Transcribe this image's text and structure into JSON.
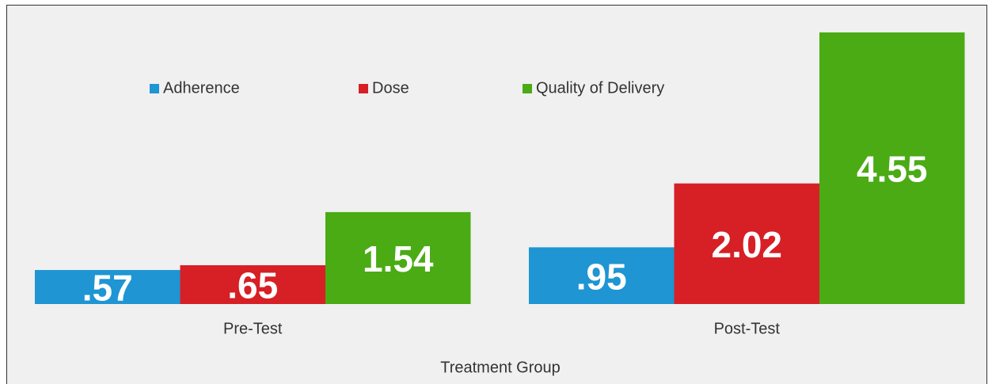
{
  "chart_data": {
    "type": "bar",
    "x_label": "Treatment Group",
    "categories": [
      "Pre-Test",
      "Post-Test"
    ],
    "series": [
      {
        "name": "Adherence",
        "color": "#1f95d3",
        "values": [
          0.57,
          0.95
        ],
        "value_labels": [
          ".57",
          ".95"
        ]
      },
      {
        "name": "Dose",
        "color": "#d71f26",
        "values": [
          0.65,
          2.02
        ],
        "value_labels": [
          ".65",
          "2.02"
        ]
      },
      {
        "name": "Quality of Delivery",
        "color": "#4aab14",
        "values": [
          1.54,
          4.55
        ],
        "value_labels": [
          "1.54",
          "4.55"
        ]
      }
    ],
    "ylim": [
      0,
      5
    ],
    "legend": "top"
  }
}
